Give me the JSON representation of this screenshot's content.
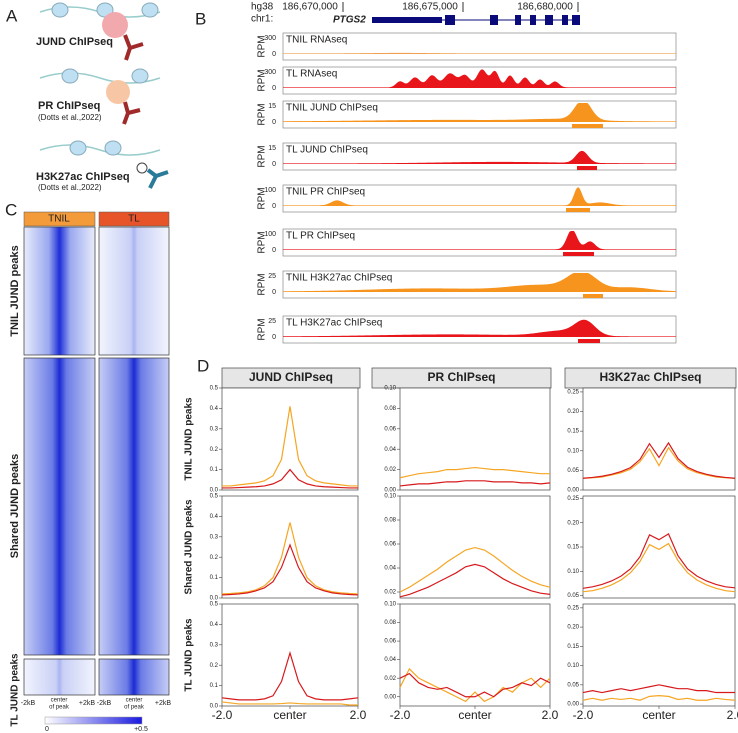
{
  "panel_a": {
    "letter": "A",
    "items": [
      {
        "label": "JUND ChIPseq"
      },
      {
        "label": "PR ChIPseq",
        "citation": "(Dotts et al.,2022)"
      },
      {
        "label": "H3K27ac ChIPseq",
        "citation": "(Dotts et al.,2022)"
      }
    ]
  },
  "panel_b": {
    "letter": "B",
    "genome": "hg38",
    "chrom": "chr1:",
    "coords": [
      "186,670,000",
      "186,675,000",
      "186,680,000"
    ],
    "gene": "PTGS2",
    "unit": "RPM",
    "tracks": [
      {
        "label": "TNIL RNAseq",
        "max": 300,
        "min": 0
      },
      {
        "label": "TL RNAseq",
        "max": 300,
        "min": 0
      },
      {
        "label": "TNIL JUND ChIPseq",
        "max": 15,
        "min": 0
      },
      {
        "label": "TL JUND ChIPseq",
        "max": 15,
        "min": 0
      },
      {
        "label": "TNIL PR ChIPseq",
        "max": 100,
        "min": 0
      },
      {
        "label": "TL PR ChIPseq",
        "max": 100,
        "min": 0
      },
      {
        "label": "TNIL H3K27ac ChIPseq",
        "max": 25,
        "min": 0
      },
      {
        "label": "TL H3K27ac ChIPseq",
        "max": 25,
        "min": 0
      }
    ]
  },
  "panel_c": {
    "letter": "C",
    "columns": [
      "TNIL",
      "TL"
    ],
    "rows": [
      "TNIL JUND peaks",
      "Shared JUND peaks",
      "TL JUND peaks"
    ],
    "x_labels": [
      "-2kB",
      "center",
      "of peak",
      "+2kB"
    ],
    "colorbar": [
      "0",
      "+0.5"
    ]
  },
  "panel_d": {
    "letter": "D",
    "columns": [
      "JUND ChIPseq",
      "PR ChIPseq",
      "H3K27ac ChIPseq"
    ],
    "rows": [
      "TNIL JUND peaks",
      "Shared JUND peaks",
      "TL JUND peaks"
    ]
  },
  "chart_data": [
    {
      "type": "line",
      "x": [
        -2,
        -1.75,
        -1.5,
        -1.25,
        -1,
        -0.75,
        -0.5,
        -0.25,
        0,
        0.25,
        0.5,
        0.75,
        1,
        1.25,
        1.5,
        1.75,
        2
      ],
      "xlim": [
        -2,
        2
      ],
      "ylim": [
        0,
        0.5
      ],
      "yticks": [
        {
          "value": 0,
          "label": "0.0"
        },
        0.1,
        0.2,
        0.3,
        0.4,
        0.5
      ],
      "series": [
        {
          "color": "#f5a623",
          "values": [
            0.02,
            0.02,
            0.025,
            0.03,
            0.035,
            0.045,
            0.07,
            0.15,
            0.41,
            0.15,
            0.07,
            0.045,
            0.035,
            0.03,
            0.025,
            0.02,
            0.02
          ]
        },
        {
          "color": "#d7191c",
          "values": [
            0.01,
            0.01,
            0.012,
            0.014,
            0.016,
            0.02,
            0.03,
            0.05,
            0.1,
            0.05,
            0.03,
            0.02,
            0.016,
            0.014,
            0.012,
            0.01,
            0.01
          ]
        }
      ]
    },
    {
      "type": "line",
      "x": [
        -2,
        -1.75,
        -1.5,
        -1.25,
        -1,
        -0.75,
        -0.5,
        -0.25,
        0,
        0.25,
        0.5,
        0.75,
        1,
        1.25,
        1.5,
        1.75,
        2
      ],
      "xlim": [
        -2,
        2
      ],
      "ylim": [
        0,
        0.1
      ],
      "yticks": [
        {
          "value": 0,
          "label": "0.00"
        },
        0.02,
        0.04,
        0.06,
        0.08,
        {
          "value": 0.1,
          "label": "0.10"
        }
      ],
      "series": [
        {
          "color": "#f5a623",
          "values": [
            0.012,
            0.014,
            0.016,
            0.017,
            0.018,
            0.02,
            0.02,
            0.021,
            0.022,
            0.021,
            0.02,
            0.02,
            0.019,
            0.018,
            0.017,
            0.016,
            0.016
          ]
        },
        {
          "color": "#d7191c",
          "values": [
            0.004,
            0.005,
            0.006,
            0.006,
            0.007,
            0.008,
            0.008,
            0.009,
            0.009,
            0.009,
            0.008,
            0.008,
            0.008,
            0.007,
            0.007,
            0.006,
            0.007
          ]
        }
      ]
    },
    {
      "type": "line",
      "x": [
        -2,
        -1.75,
        -1.5,
        -1.25,
        -1,
        -0.75,
        -0.5,
        -0.25,
        0,
        0.25,
        0.5,
        0.75,
        1,
        1.25,
        1.5,
        1.75,
        2
      ],
      "xlim": [
        -2,
        2
      ],
      "ylim": [
        0,
        0.26
      ],
      "yticks": [
        {
          "value": 0,
          "label": "0.00"
        },
        0.05,
        {
          "value": 0.1,
          "label": "0.10"
        },
        0.15,
        {
          "value": 0.2,
          "label": "0.20"
        },
        0.25
      ],
      "series": [
        {
          "color": "#f5a623",
          "values": [
            0.03,
            0.031,
            0.033,
            0.038,
            0.044,
            0.053,
            0.072,
            0.105,
            0.062,
            0.108,
            0.074,
            0.054,
            0.044,
            0.038,
            0.033,
            0.031,
            0.03
          ]
        },
        {
          "color": "#d7191c",
          "values": [
            0.03,
            0.032,
            0.035,
            0.04,
            0.047,
            0.057,
            0.078,
            0.118,
            0.083,
            0.12,
            0.08,
            0.058,
            0.047,
            0.04,
            0.035,
            0.032,
            0.03
          ]
        }
      ]
    },
    {
      "type": "line",
      "x": [
        -2,
        -1.75,
        -1.5,
        -1.25,
        -1,
        -0.75,
        -0.5,
        -0.25,
        0,
        0.25,
        0.5,
        0.75,
        1,
        1.25,
        1.5,
        1.75,
        2
      ],
      "xlim": [
        -2,
        2
      ],
      "ylim": [
        0,
        0.5
      ],
      "yticks": [
        {
          "value": 0,
          "label": "0.0"
        },
        0.1,
        0.2,
        0.3,
        0.4,
        0.5
      ],
      "series": [
        {
          "color": "#f5a623",
          "values": [
            0.02,
            0.022,
            0.025,
            0.03,
            0.04,
            0.06,
            0.1,
            0.2,
            0.37,
            0.2,
            0.1,
            0.06,
            0.04,
            0.03,
            0.025,
            0.022,
            0.02
          ]
        },
        {
          "color": "#d7191c",
          "values": [
            0.015,
            0.017,
            0.02,
            0.025,
            0.035,
            0.05,
            0.08,
            0.15,
            0.26,
            0.15,
            0.08,
            0.05,
            0.035,
            0.025,
            0.02,
            0.017,
            0.015
          ]
        }
      ]
    },
    {
      "type": "line",
      "x": [
        -2,
        -1.75,
        -1.5,
        -1.25,
        -1,
        -0.75,
        -0.5,
        -0.25,
        0,
        0.25,
        0.5,
        0.75,
        1,
        1.25,
        1.5,
        1.75,
        2
      ],
      "xlim": [
        -2,
        2
      ],
      "ylim": [
        0.015,
        0.1
      ],
      "yticks": [
        0.02,
        0.04,
        0.06,
        0.08,
        {
          "value": 0.1,
          "label": "0.10"
        }
      ],
      "series": [
        {
          "color": "#f5a623",
          "values": [
            0.02,
            0.024,
            0.029,
            0.034,
            0.039,
            0.045,
            0.05,
            0.055,
            0.057,
            0.055,
            0.05,
            0.044,
            0.038,
            0.033,
            0.029,
            0.026,
            0.024
          ]
        },
        {
          "color": "#d7191c",
          "values": [
            0.016,
            0.018,
            0.021,
            0.024,
            0.028,
            0.032,
            0.036,
            0.041,
            0.043,
            0.041,
            0.036,
            0.031,
            0.027,
            0.024,
            0.021,
            0.019,
            0.018
          ]
        }
      ]
    },
    {
      "type": "line",
      "x": [
        -2,
        -1.75,
        -1.5,
        -1.25,
        -1,
        -0.75,
        -0.5,
        -0.25,
        0,
        0.25,
        0.5,
        0.75,
        1,
        1.25,
        1.5,
        1.75,
        2
      ],
      "xlim": [
        -2,
        2
      ],
      "ylim": [
        0.045,
        0.255
      ],
      "yticks": [
        0.05,
        {
          "value": 0.1,
          "label": "0.10"
        },
        0.15,
        {
          "value": 0.2,
          "label": "0.20"
        },
        0.25
      ],
      "series": [
        {
          "color": "#f5a623",
          "values": [
            0.058,
            0.06,
            0.065,
            0.072,
            0.082,
            0.097,
            0.12,
            0.155,
            0.145,
            0.157,
            0.122,
            0.097,
            0.082,
            0.072,
            0.065,
            0.06,
            0.058
          ]
        },
        {
          "color": "#d7191c",
          "values": [
            0.065,
            0.068,
            0.073,
            0.08,
            0.09,
            0.105,
            0.13,
            0.175,
            0.165,
            0.177,
            0.132,
            0.105,
            0.09,
            0.08,
            0.073,
            0.068,
            0.066
          ]
        }
      ]
    },
    {
      "type": "line",
      "x": [
        -2,
        -1.75,
        -1.5,
        -1.25,
        -1,
        -0.75,
        -0.5,
        -0.25,
        0,
        0.25,
        0.5,
        0.75,
        1,
        1.25,
        1.5,
        1.75,
        2
      ],
      "xlim": [
        -2,
        2
      ],
      "xticks": [
        {
          "value": -2,
          "label": "-2.0"
        },
        {
          "value": 0,
          "label": "center"
        },
        {
          "value": 2,
          "label": "2.0"
        }
      ],
      "ylim": [
        0,
        0.5
      ],
      "yticks": [
        {
          "value": 0,
          "label": "0.0"
        },
        0.1,
        0.2,
        0.3,
        0.4,
        0.5
      ],
      "series": [
        {
          "color": "#f5a623",
          "values": [
            0.02,
            0.015,
            0.01,
            0.01,
            0.01,
            0.01,
            0.01,
            0.012,
            0.015,
            0.012,
            0.01,
            0.01,
            0.01,
            0.01,
            0.01,
            0.005,
            0.005
          ]
        },
        {
          "color": "#d7191c",
          "values": [
            0.04,
            0.035,
            0.03,
            0.03,
            0.03,
            0.035,
            0.05,
            0.12,
            0.26,
            0.12,
            0.05,
            0.035,
            0.03,
            0.03,
            0.03,
            0.035,
            0.04
          ]
        }
      ]
    },
    {
      "type": "line",
      "x": [
        -2,
        -1.75,
        -1.5,
        -1.25,
        -1,
        -0.75,
        -0.5,
        -0.25,
        0,
        0.25,
        0.5,
        0.75,
        1,
        1.25,
        1.5,
        1.75,
        2
      ],
      "xlim": [
        -2,
        2
      ],
      "xticks": [
        {
          "value": -2,
          "label": "-2.0"
        },
        {
          "value": 0,
          "label": "center"
        },
        {
          "value": 2,
          "label": "2.0"
        }
      ],
      "ylim": [
        -0.01,
        0.1
      ],
      "yticks": [
        {
          "value": 0,
          "label": "0.00"
        },
        0.02,
        0.04,
        0.06,
        0.08,
        {
          "value": 0.1,
          "label": "0.10"
        }
      ],
      "series": [
        {
          "color": "#f5a623",
          "values": [
            0.01,
            0.03,
            0.02,
            0.015,
            0.01,
            0.005,
            0,
            -0.005,
            0.005,
            -0.005,
            0,
            0.01,
            0.005,
            0.015,
            0.02,
            0.01,
            0.02
          ]
        },
        {
          "color": "#d7191c",
          "values": [
            0.02,
            0.025,
            0.015,
            0.01,
            0.008,
            0.01,
            0.005,
            0,
            0,
            0.005,
            0,
            0.008,
            0.01,
            0.015,
            0.012,
            0.02,
            0.015
          ]
        }
      ]
    },
    {
      "type": "line",
      "x": [
        -2,
        -1.75,
        -1.5,
        -1.25,
        -1,
        -0.75,
        -0.5,
        -0.25,
        0,
        0.25,
        0.5,
        0.75,
        1,
        1.25,
        1.5,
        1.75,
        2
      ],
      "xlim": [
        -2,
        2
      ],
      "xticks": [
        {
          "value": -2,
          "label": "-2.0"
        },
        {
          "value": 0,
          "label": "center"
        },
        {
          "value": 2,
          "label": "2.0"
        }
      ],
      "ylim": [
        -0.005,
        0.26
      ],
      "yticks": [
        {
          "value": 0,
          "label": "0.00"
        },
        0.05,
        {
          "value": 0.1,
          "label": "0.10"
        },
        0.15,
        {
          "value": 0.2,
          "label": "0.20"
        },
        0.25
      ],
      "series": [
        {
          "color": "#f5a623",
          "values": [
            0.01,
            0.015,
            0.01,
            0.015,
            0.012,
            0.015,
            0.01,
            0.02,
            0.022,
            0.02,
            0.012,
            0.015,
            0.01,
            0.01,
            0.015,
            0.012,
            0.01
          ]
        },
        {
          "color": "#d7191c",
          "values": [
            0.03,
            0.035,
            0.03,
            0.035,
            0.04,
            0.035,
            0.04,
            0.045,
            0.05,
            0.045,
            0.04,
            0.04,
            0.035,
            0.035,
            0.03,
            0.03,
            0.03
          ]
        }
      ]
    }
  ]
}
